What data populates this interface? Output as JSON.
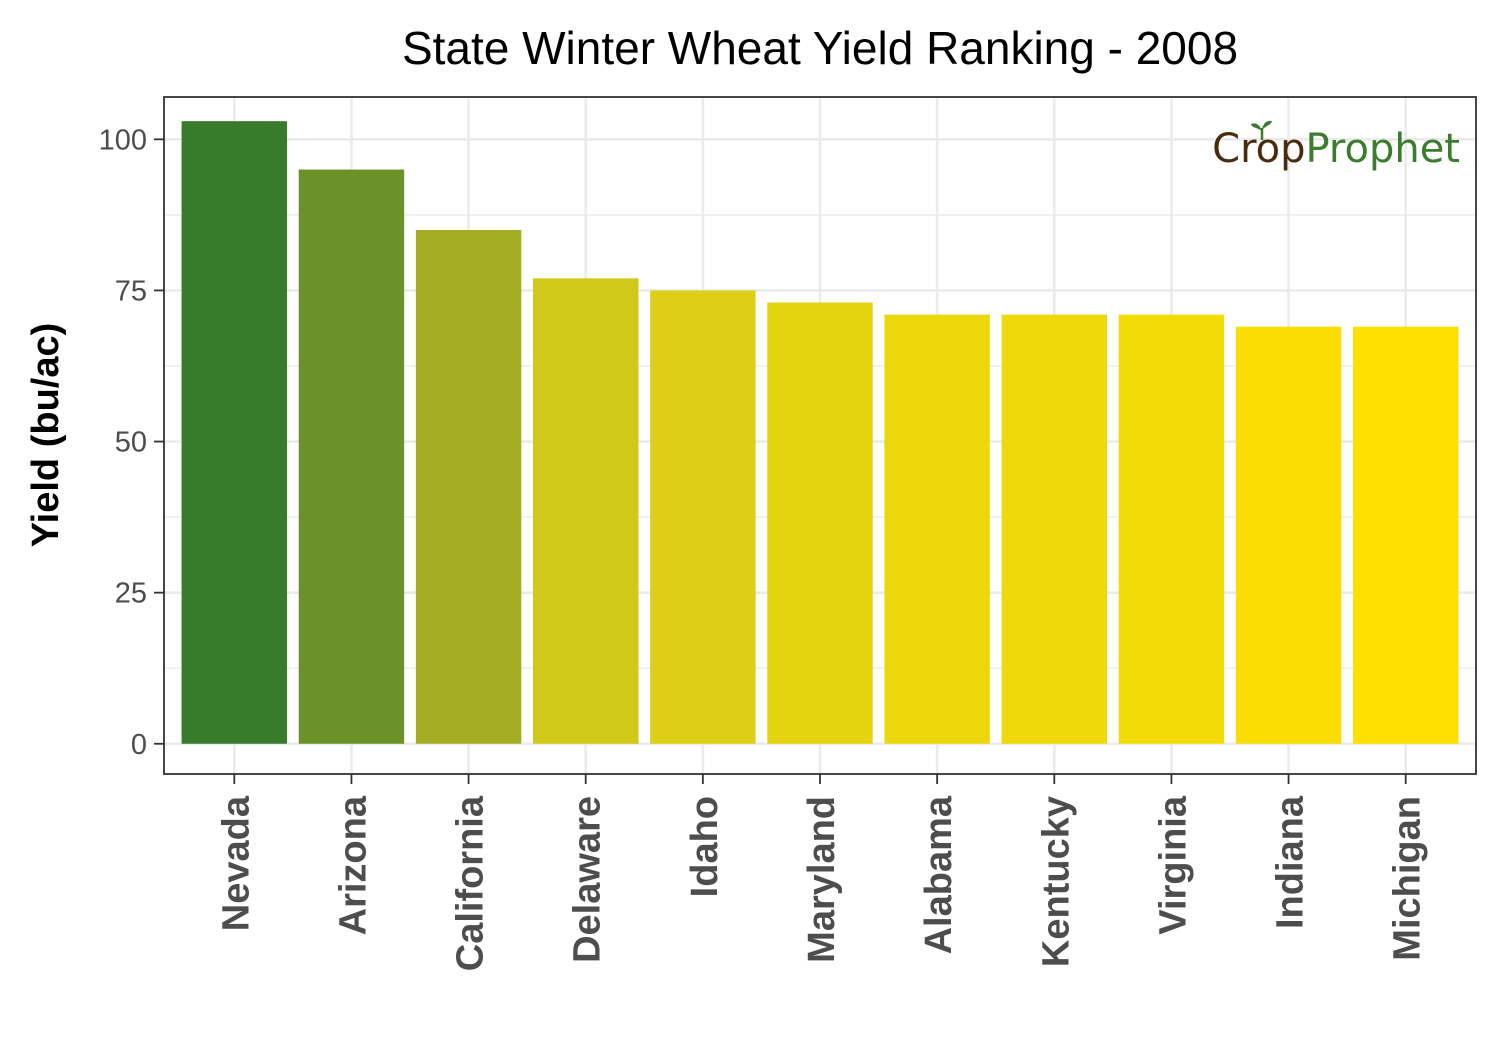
{
  "chart_data": {
    "type": "bar",
    "title": "State Winter Wheat Yield Ranking - 2008",
    "xlabel": "",
    "ylabel": "Yield (bu/ac)",
    "ylim": [
      -5,
      107
    ],
    "yticks": [
      0,
      25,
      50,
      75,
      100
    ],
    "categories": [
      "Nevada",
      "Arizona",
      "California",
      "Delaware",
      "Idaho",
      "Maryland",
      "Alabama",
      "Kentucky",
      "Virginia",
      "Indiana",
      "Michigan"
    ],
    "values": [
      103,
      95,
      85,
      77,
      75,
      73,
      71,
      71,
      71,
      69,
      69
    ],
    "bar_colors": [
      "#387b2b",
      "#6b9229",
      "#a3ae25",
      "#d1c918",
      "#dccf16",
      "#e6d310",
      "#ecd70c",
      "#f0d90a",
      "#f3db08",
      "#fadd04",
      "#ffdf00"
    ],
    "grid": true,
    "legend": "none"
  },
  "watermark": {
    "part1": "Crop",
    "part2": "Prophet",
    "color1": "#4a2c0c",
    "color2": "#3a7d2c"
  },
  "colors": {
    "grid": "#ebebeb",
    "panel_border": "#333333",
    "tick_text": "#4d4d4d"
  }
}
